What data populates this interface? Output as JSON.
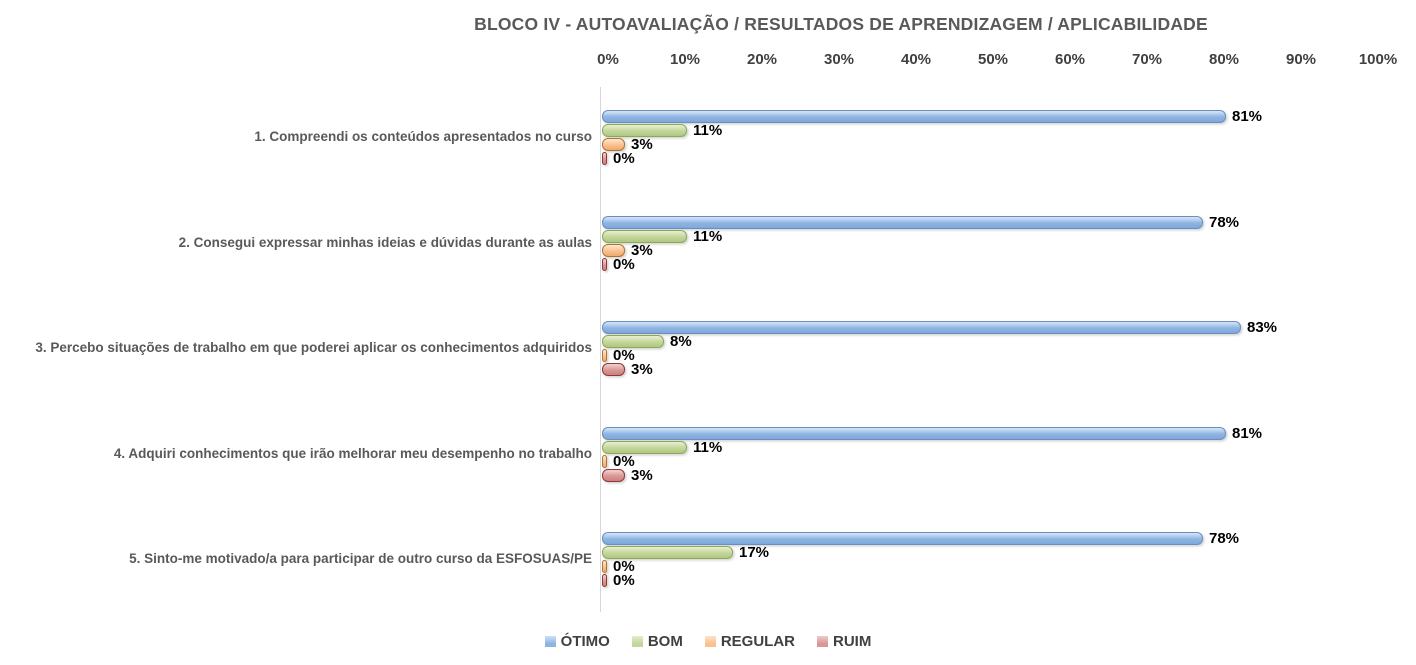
{
  "chart_data": {
    "type": "bar",
    "orientation": "horizontal",
    "title": "BLOCO IV - AUTOAVALIAÇÃO / RESULTADOS DE APRENDIZAGEM / APLICABILIDADE",
    "categories": [
      "1. Compreendi os conteúdos apresentados no curso",
      "2. Consegui expressar minhas ideias e dúvidas durante as aulas",
      "3. Percebo situações de trabalho em que poderei aplicar os conhecimentos adquiridos",
      "4. Adquiri conhecimentos que irão melhorar meu desempenho no trabalho",
      "5. Sinto-me motivado/a para participar de outro curso da ESFOSUAS/PE"
    ],
    "series": [
      {
        "name": "ÓTIMO",
        "values": [
          81,
          78,
          83,
          81,
          78
        ],
        "color": "#8DB4E2",
        "color_light": "#CFE0F6",
        "color_dark": "#7FA7D9",
        "border": "#6C8EBF"
      },
      {
        "name": "BOM",
        "values": [
          11,
          11,
          8,
          11,
          17
        ],
        "color": "#C3D69B",
        "color_light": "#E3EDCB",
        "color_dark": "#AFC781",
        "border": "#8CA95B"
      },
      {
        "name": "REGULAR",
        "values": [
          3,
          3,
          0,
          0,
          0
        ],
        "color": "#FAC090",
        "color_light": "#FDE3C8",
        "color_dark": "#EFA96F",
        "border": "#AE7434"
      },
      {
        "name": "RUIM",
        "values": [
          0,
          0,
          3,
          3,
          0
        ],
        "color": "#D99694",
        "color_light": "#EECBCA",
        "color_dark": "#CB817F",
        "border": "#8F3836"
      }
    ],
    "xlim": [
      0,
      100
    ],
    "x_ticks": [
      "0%",
      "10%",
      "20%",
      "30%",
      "40%",
      "50%",
      "60%",
      "70%",
      "80%",
      "90%",
      "100%"
    ],
    "data_label_suffix": "%",
    "legend_position": "bottom",
    "grid": false,
    "colors": {
      "title_text": "#595959",
      "axis_text": "#404040",
      "category_text": "#595959",
      "data_label_text": "#000000",
      "axis_line": "#D6D6D6",
      "background": "#FFFFFF"
    }
  }
}
